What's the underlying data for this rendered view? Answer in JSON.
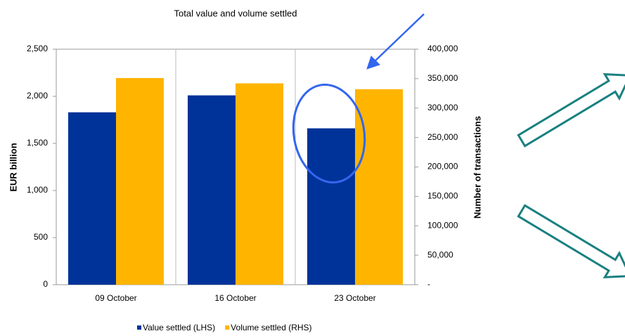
{
  "chart_data": {
    "type": "bar",
    "title": "Total value and volume settled",
    "ylabel": "EUR billion",
    "y2label": "Number of transactions",
    "categories": [
      "09 October",
      "16 October",
      "23 October"
    ],
    "series": [
      {
        "name": "Value settled (LHS)",
        "color": "#003399",
        "values": [
          1830,
          2010,
          1660
        ]
      },
      {
        "name": "Volume settled (RHS)",
        "color": "#ffb400",
        "values": [
          351000,
          342000,
          332000
        ],
        "axis": "y2"
      }
    ],
    "ylim": [
      0,
      2500
    ],
    "yticks": [
      0,
      500,
      {
        "value": 1000,
        "label": "1,000"
      },
      {
        "value": 1500,
        "label": "1,500"
      },
      {
        "value": 2000,
        "label": "2,000"
      },
      {
        "value": 2500,
        "label": "2,500"
      }
    ],
    "y2lim": [
      0,
      400000
    ],
    "y2ticks": [
      {
        "value": 0,
        "label": "-"
      },
      {
        "value": 50000,
        "label": "50,000"
      },
      {
        "value": 100000,
        "label": "100,000"
      },
      {
        "value": 150000,
        "label": "150,000"
      },
      {
        "value": 200000,
        "label": "200,000"
      },
      {
        "value": 250000,
        "label": "250,000"
      },
      {
        "value": 300000,
        "label": "300,000"
      },
      {
        "value": 350000,
        "label": "350,000"
      },
      {
        "value": 400000,
        "label": "400,000"
      }
    ],
    "grid": true,
    "legend": "bottom"
  }
}
